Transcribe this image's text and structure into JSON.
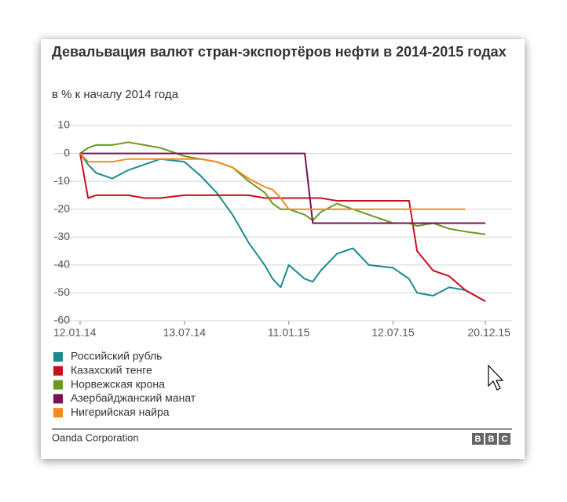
{
  "chart_data": {
    "type": "line",
    "title": "Девальвация валют стран-экспортёров нефти в 2014-2015 годах",
    "subtitle": "в % к началу 2014 года",
    "x": [
      "12.01.14",
      "26.01.14",
      "09.02.14",
      "09.03.14",
      "06.04.14",
      "04.05.14",
      "01.06.14",
      "13.07.14",
      "10.08.14",
      "07.09.14",
      "05.10.14",
      "02.11.14",
      "30.11.14",
      "14.12.14",
      "28.12.14",
      "11.01.15",
      "08.02.15",
      "22.02.15",
      "08.03.15",
      "05.04.15",
      "03.05.15",
      "31.05.15",
      "12.07.15",
      "09.08.15",
      "23.08.15",
      "20.09.15",
      "18.10.15",
      "15.11.15",
      "20.12.15"
    ],
    "series": [
      {
        "name": "Российский рубль",
        "color": "#1b8a8c",
        "values": [
          0,
          -4,
          -7,
          -9,
          -6,
          -4,
          -2,
          -3,
          -8,
          -14,
          -22,
          -32,
          -40,
          -45,
          -48,
          -40,
          -45,
          -46,
          -42,
          -36,
          -34,
          -40,
          -41,
          -45,
          -50,
          -51,
          -48,
          -49,
          -53
        ]
      },
      {
        "name": "Казахский тенге",
        "color": "#c8101e",
        "values": [
          0,
          -16,
          -15,
          -15,
          -15,
          -16,
          -16,
          -15,
          -15,
          -15,
          -15,
          -15,
          -16,
          -16,
          -16,
          -16,
          -16,
          -16,
          -16,
          -17,
          -17,
          -17,
          -17,
          -17,
          -35,
          -42,
          -44,
          -49,
          -53
        ]
      },
      {
        "name": "Норвежская крона",
        "color": "#6b9a1f",
        "values": [
          0,
          2,
          3,
          3,
          4,
          3,
          2,
          -1,
          -2,
          -3,
          -5,
          -10,
          -14,
          -18,
          -20,
          -20,
          -22,
          -24,
          -21,
          -18,
          -20,
          -22,
          -25,
          -25,
          -26,
          -25,
          -27,
          -28,
          -29
        ]
      },
      {
        "name": "Азербайджанский манат",
        "color": "#7a1050",
        "values": [
          0,
          0,
          0,
          0,
          0,
          0,
          0,
          0,
          0,
          0,
          0,
          0,
          0,
          0,
          0,
          0,
          0,
          -25,
          -25,
          -25,
          -25,
          -25,
          -25,
          -25,
          -25,
          -25,
          -25,
          -25,
          -25
        ]
      },
      {
        "name": "Нигерийская найра",
        "color": "#f28a1e",
        "values": [
          0,
          -3,
          -3,
          -3,
          -2,
          -2,
          -2,
          -2,
          -2,
          -3,
          -5,
          -9,
          -12,
          -13,
          -16,
          -20,
          -20,
          -20,
          -20,
          -20,
          -20,
          -20,
          -20,
          -20,
          -20,
          -20,
          -20,
          -20,
          null
        ]
      }
    ],
    "xlim": [
      "12.01.14",
      "20.12.15"
    ],
    "xticks": [
      "12.01.14",
      "13.07.14",
      "11.01.15",
      "12.07.15",
      "20.12.15"
    ],
    "ylim": [
      -60,
      10
    ],
    "yticks": [
      10,
      0,
      -10,
      -20,
      -30,
      -40,
      -50,
      -60
    ],
    "grid": true,
    "source": "Oanda Corporation",
    "logo": [
      "B",
      "B",
      "C"
    ]
  }
}
